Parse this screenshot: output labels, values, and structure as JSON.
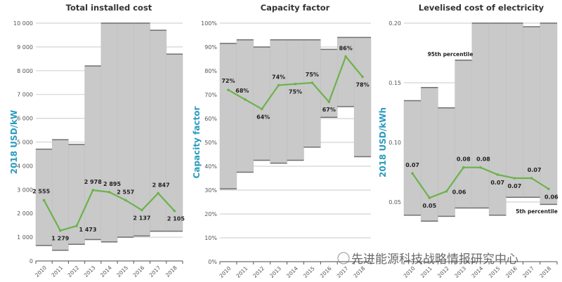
{
  "chart_data": [
    {
      "type": "line",
      "title": "Total installed cost",
      "ylabel": "2018 USD/kW",
      "xlabel": "",
      "categories": [
        "2010",
        "2011",
        "2012",
        "2013",
        "2014",
        "2015",
        "2016",
        "2017",
        "2018"
      ],
      "ylim": [
        0,
        10000
      ],
      "yticks": [
        0,
        1000,
        2000,
        3000,
        4000,
        5000,
        6000,
        7000,
        8000,
        9000,
        10000
      ],
      "ytick_labels": [
        "0",
        "1 000",
        "2 000",
        "3 000",
        "4 000",
        "5 000",
        "6 000",
        "7 000",
        "8 000",
        "9 000",
        "10 000"
      ],
      "grid": true,
      "range_bars": {
        "high": [
          4700,
          5100,
          4900,
          8200,
          10000,
          10000,
          10000,
          9700,
          8700
        ],
        "low": [
          650,
          450,
          700,
          900,
          800,
          1000,
          1050,
          1250,
          1250
        ]
      },
      "series": [
        {
          "values": [
            2555,
            1279,
            1473,
            2978,
            2895,
            2557,
            2137,
            2847,
            2105
          ],
          "labels": [
            "2 555",
            "1 279",
            "1 473",
            "2 978",
            "2 895",
            "2 557",
            "2 137",
            "2 847",
            "2 105"
          ]
        }
      ]
    },
    {
      "type": "line",
      "title": "Capacity factor",
      "ylabel": "Capacity factor",
      "xlabel": "",
      "categories": [
        "2010",
        "2011",
        "2012",
        "2013",
        "2014",
        "2015",
        "2016",
        "2017",
        "2018"
      ],
      "ylim": [
        0,
        100
      ],
      "yticks": [
        0,
        10,
        20,
        30,
        40,
        50,
        60,
        70,
        80,
        90,
        100
      ],
      "ytick_labels": [
        "0%",
        "10%",
        "20%",
        "30%",
        "40%",
        "50%",
        "60%",
        "70%",
        "80%",
        "90%",
        "100%"
      ],
      "grid": true,
      "range_bars": {
        "high": [
          91.5,
          93,
          90,
          93,
          93,
          93,
          89,
          94,
          94
        ],
        "low": [
          30.5,
          37.5,
          42.5,
          41.3,
          42.5,
          48,
          60.5,
          65,
          44
        ]
      },
      "series": [
        {
          "values": [
            72,
            68,
            64,
            74,
            74.5,
            75,
            67,
            86,
            77.5
          ],
          "labels": [
            "72%",
            "68%",
            "64%",
            "74%",
            "75%",
            "75%",
            "67%",
            "86%",
            "78%"
          ]
        }
      ]
    },
    {
      "type": "line",
      "title": "Levelised cost of electricity",
      "ylabel": "2018 USD/kWh",
      "xlabel": "",
      "categories": [
        "2010",
        "2011",
        "2012",
        "2013",
        "2014",
        "2015",
        "2016",
        "2017",
        "2018"
      ],
      "ylim": [
        0,
        0.2
      ],
      "yticks": [
        0.05,
        0.1,
        0.15,
        0.2
      ],
      "ytick_labels": [
        "0.05",
        "0.10",
        "0.15",
        "0.20"
      ],
      "grid": true,
      "range_bars": {
        "high": [
          0.135,
          0.146,
          0.129,
          0.169,
          0.2,
          0.2,
          0.2,
          0.197,
          0.2
        ],
        "low": [
          0.039,
          0.034,
          0.038,
          0.045,
          0.045,
          0.039,
          0.054,
          0.054,
          0.048
        ]
      },
      "series": [
        {
          "values": [
            0.074,
            0.0535,
            0.059,
            0.079,
            0.079,
            0.073,
            0.07,
            0.07,
            0.061
          ],
          "labels": [
            "0.07",
            "0.05",
            "0.06",
            "0.08",
            "0.08",
            "0.07",
            "0.07",
            "0.07",
            "0.06"
          ]
        }
      ],
      "annotations": {
        "high": "95th percentile",
        "low": "5th percentile"
      }
    }
  ],
  "colors": {
    "range": "#c9c9c9",
    "range_edge": "#6f6f6f",
    "line": "#6cb24c",
    "ylabel": "#2a9bbf",
    "grid": "#d4d4d4"
  },
  "watermark": {
    "text": "先进能源科技战略情报研究中心",
    "icon": "wechat-icon"
  }
}
